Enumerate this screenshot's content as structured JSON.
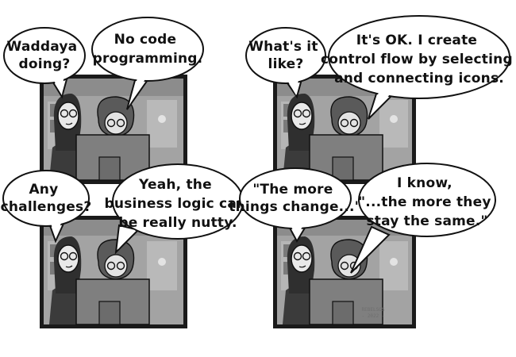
{
  "comic": {
    "panels": [
      {
        "bubbles": [
          {
            "lines": [
              "Waddaya",
              "doing?"
            ]
          },
          {
            "lines": [
              "No code",
              "programming."
            ]
          }
        ]
      },
      {
        "bubbles": [
          {
            "lines": [
              "What's it",
              "like?"
            ]
          },
          {
            "lines": [
              "It's OK. I create",
              "control flow by selecting",
              "and connecting icons."
            ]
          }
        ]
      },
      {
        "bubbles": [
          {
            "lines": [
              "Any",
              "challenges?"
            ]
          },
          {
            "lines": [
              "Yeah, the",
              "business logic can",
              "be really nutty."
            ]
          }
        ]
      },
      {
        "bubbles": [
          {
            "lines": [
              "\"The more",
              "things change...\""
            ]
          },
          {
            "lines": [
              "I know,",
              "\"...the more they",
              "stay the same.\""
            ]
          }
        ]
      }
    ],
    "signature": [
      "REBELSOS",
      "- 2022 -"
    ]
  },
  "colors": {
    "ink": "#111111",
    "panel_bg": "#9b9b9b",
    "bubble_fill": "#ffffff"
  }
}
